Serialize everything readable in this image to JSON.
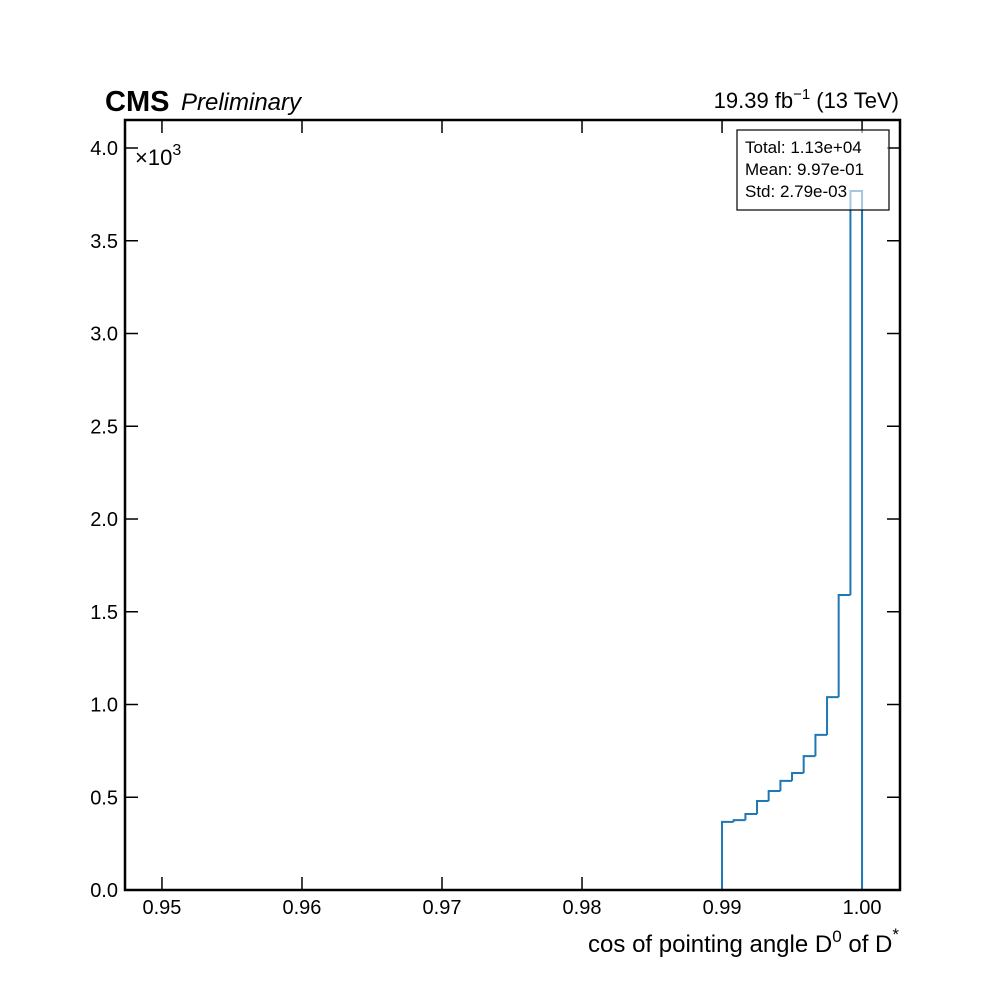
{
  "chart_data": {
    "type": "histogram",
    "experiment": "CMS",
    "status": "Preliminary",
    "lumi": "19.39 fb",
    "lumi_exponent": "−1",
    "energy": "(13 TeV)",
    "y_multiplier": "×10",
    "y_multiplier_exponent": "3",
    "x_label": {
      "base": "cos of pointing angle D",
      "sup1": "0",
      "mid": " of D",
      "sup2": "*"
    },
    "stats": [
      "Total: 1.13e+04",
      "Mean: 9.97e-01",
      "Std: 2.79e-03"
    ],
    "bins": [
      0.99,
      0.99083,
      0.99167,
      0.9925,
      0.99333,
      0.99417,
      0.995,
      0.99583,
      0.99667,
      0.9975,
      0.99833,
      0.99917,
      1.0
    ],
    "values": [
      0.367,
      0.377,
      0.41,
      0.48,
      0.534,
      0.588,
      0.631,
      0.722,
      0.836,
      1.04,
      1.59,
      3.768
    ],
    "color": "#1f77b4",
    "xlim": [
      0.94736,
      1.00271
    ],
    "ylim": [
      0,
      4.151
    ],
    "xticks": [
      0.95,
      0.96,
      0.97,
      0.98,
      0.99,
      {
        "value": 1.0,
        "label": "1.00"
      }
    ],
    "yticks": [
      {
        "value": 0,
        "label": "0.0"
      },
      0.5,
      {
        "value": 1,
        "label": "1.0"
      },
      1.5,
      {
        "value": 2,
        "label": "2.0"
      },
      2.5,
      {
        "value": 3,
        "label": "3.0"
      },
      3.5,
      {
        "value": 4,
        "label": "4.0"
      }
    ]
  }
}
